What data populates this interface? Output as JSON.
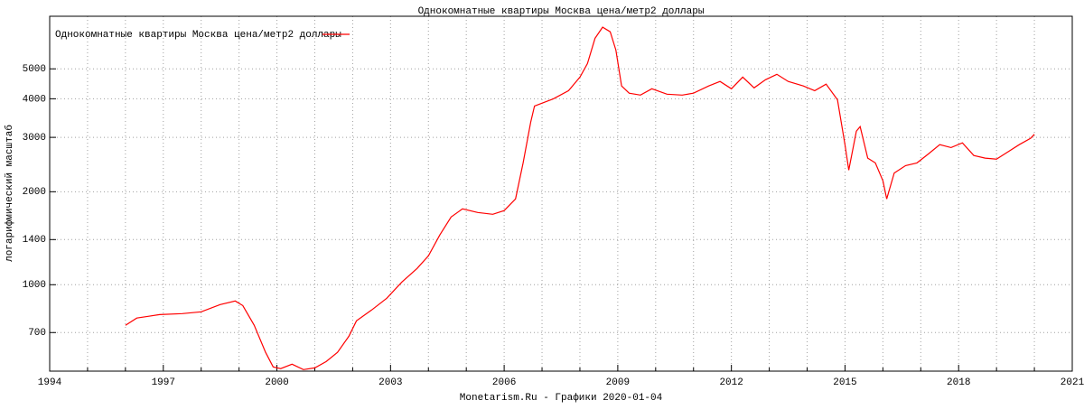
{
  "chart_data": {
    "type": "line",
    "title": "Однокомнатные квартиры Москва цена/метр2 доллары",
    "x_label": "Monetarism.Ru - Графики  2020-01-04",
    "y_label": "логарифмический масштаб",
    "log_y": true,
    "grid": true,
    "legend": "top-left",
    "xlim": [
      1994,
      2021
    ],
    "xticks": [
      1994,
      1997,
      2000,
      2003,
      2006,
      2009,
      2012,
      2015,
      2018,
      2021
    ],
    "xminorticks": [
      1995,
      1996,
      1998,
      1999,
      2001,
      2002,
      2004,
      2005,
      2007,
      2008,
      2010,
      2011,
      2013,
      2014,
      2016,
      2017,
      2019,
      2020
    ],
    "ylim": [
      525,
      7400
    ],
    "yticks": [
      700,
      1000,
      1400,
      2000,
      3000,
      4000,
      5000
    ],
    "x": [
      1996.0,
      1996.3,
      1996.6,
      1996.9,
      1997.5,
      1998.0,
      1998.5,
      1998.9,
      1999.1,
      1999.4,
      1999.7,
      1999.9,
      2000.1,
      2000.4,
      2000.7,
      2001.0,
      2001.3,
      2001.6,
      2001.9,
      2002.1,
      2002.5,
      2002.9,
      2003.3,
      2003.7,
      2004.0,
      2004.3,
      2004.6,
      2004.9,
      2005.3,
      2005.7,
      2006.0,
      2006.3,
      2006.5,
      2006.7,
      2006.8,
      2007.3,
      2007.7,
      2008.0,
      2008.2,
      2008.4,
      2008.6,
      2008.8,
      2008.95,
      2009.1,
      2009.3,
      2009.6,
      2009.9,
      2010.3,
      2010.7,
      2011.0,
      2011.4,
      2011.7,
      2012.0,
      2012.3,
      2012.6,
      2012.9,
      2013.2,
      2013.5,
      2013.9,
      2014.2,
      2014.5,
      2014.8,
      2015.0,
      2015.1,
      2015.3,
      2015.4,
      2015.6,
      2015.8,
      2016.0,
      2016.1,
      2016.3,
      2016.6,
      2016.9,
      2017.2,
      2017.5,
      2017.8,
      2018.1,
      2018.4,
      2018.7,
      2019.0,
      2019.3,
      2019.6,
      2019.9,
      2020.0
    ],
    "series": [
      {
        "name": "Однокомнатные квартиры Москва цена/метр2 доллары",
        "color": "#ff0000",
        "values": [
          739,
          780,
          790,
          800,
          806,
          817,
          862,
          886,
          856,
          739,
          604,
          542,
          535,
          553,
          531,
          538,
          564,
          604,
          681,
          764,
          828,
          904,
          1020,
          1129,
          1240,
          1448,
          1657,
          1760,
          1714,
          1691,
          1738,
          1896,
          2480,
          3360,
          3790,
          4000,
          4250,
          4700,
          5200,
          6280,
          6820,
          6590,
          5750,
          4400,
          4170,
          4110,
          4310,
          4140,
          4110,
          4170,
          4400,
          4550,
          4310,
          4700,
          4340,
          4610,
          4800,
          4550,
          4400,
          4250,
          4460,
          3970,
          2840,
          2350,
          3140,
          3250,
          2570,
          2480,
          2170,
          1896,
          2300,
          2430,
          2480,
          2650,
          2840,
          2780,
          2880,
          2620,
          2570,
          2550,
          2690,
          2840,
          2980,
          3070
        ]
      }
    ]
  }
}
